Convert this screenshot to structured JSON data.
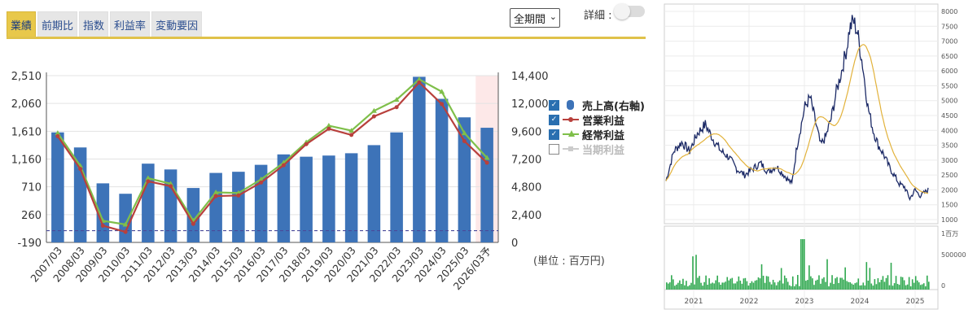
{
  "tabs": [
    "業績",
    "前期比",
    "指数",
    "利益率",
    "変動要因"
  ],
  "active_tab": 0,
  "period_select": "全期間",
  "detail_label": "詳細 :",
  "unit_label": "(単位 : 百万円)",
  "legend": [
    {
      "label": "売上高(右軸)",
      "checked": true,
      "color": "#3d73b8"
    },
    {
      "label": "営業利益",
      "checked": true,
      "color": "#b8403c"
    },
    {
      "label": "経常利益",
      "checked": true,
      "color": "#7fbf4a"
    },
    {
      "label": "当期利益",
      "checked": false,
      "color": "#cccccc"
    }
  ],
  "chart_data": [
    {
      "type": "bar",
      "categories": [
        "2007/03",
        "2008/03",
        "2009/03",
        "2010/03",
        "2011/03",
        "2012/03",
        "2013/03",
        "2014/03",
        "2015/03",
        "2016/03",
        "2017/03",
        "2018/03",
        "2019/03",
        "2020/03",
        "2021/03",
        "2022/03",
        "2023/03",
        "2024/03",
        "2025/03",
        "2026/03予"
      ],
      "left_axis": {
        "ticks": [
          "2,510",
          "2,060",
          "1,610",
          "1,160",
          "710",
          "260",
          "-190"
        ],
        "range": [
          -190,
          2510
        ]
      },
      "right_axis": {
        "ticks": [
          "14,400",
          "12,000",
          "9,600",
          "7,200",
          "4,800",
          "2,400",
          "0"
        ],
        "range": [
          0,
          14400
        ]
      },
      "series": [
        {
          "name": "売上高(右軸)",
          "type": "bar",
          "axis": "right",
          "values": [
            9500,
            8200,
            5100,
            4200,
            6800,
            6300,
            4700,
            6000,
            6100,
            6700,
            7600,
            7400,
            7500,
            7700,
            8400,
            9500,
            14300,
            12400,
            10800,
            9900
          ]
        },
        {
          "name": "営業利益",
          "type": "line",
          "axis": "left",
          "values": [
            1530,
            1000,
            80,
            -20,
            800,
            720,
            110,
            560,
            570,
            780,
            1060,
            1400,
            1650,
            1550,
            1850,
            2000,
            2400,
            2050,
            1450,
            1100
          ]
        },
        {
          "name": "経常利益",
          "type": "line",
          "axis": "left",
          "values": [
            1580,
            1050,
            160,
            100,
            850,
            760,
            160,
            620,
            610,
            830,
            1100,
            1430,
            1700,
            1620,
            1940,
            2120,
            2450,
            2250,
            1580,
            1180
          ]
        }
      ],
      "forecast_category": "2026/03予"
    },
    {
      "type": "line",
      "description_kind": "stock-price",
      "x_labels": [
        "2021",
        "2022",
        "2023",
        "2024",
        "2025"
      ],
      "price_axis": {
        "ticks": [
          "8000",
          "7500",
          "7000",
          "6500",
          "6000",
          "5500",
          "5000",
          "4500",
          "4000",
          "3500",
          "3000",
          "2500",
          "2000",
          "1500",
          "1000"
        ],
        "range": [
          1000,
          8000
        ]
      },
      "volume_axis": {
        "ticks": [
          "1百万",
          "500000",
          "0"
        ],
        "range": [
          0,
          1000000
        ]
      },
      "price_line_color": "#1c2a66",
      "ma_line_color": "#e2b23b",
      "volume_color": "#2fa84f"
    }
  ]
}
